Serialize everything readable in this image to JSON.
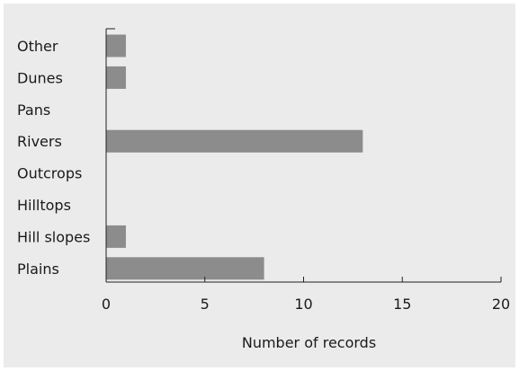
{
  "chart_data": {
    "type": "bar",
    "orientation": "horizontal",
    "title": "",
    "xlabel": "Number of records",
    "ylabel": "",
    "categories": [
      "Other",
      "Dunes",
      "Pans",
      "Rivers",
      "Outcrops",
      "Hilltops",
      "Hill slopes",
      "Plains"
    ],
    "values": [
      1,
      1,
      0,
      13,
      0,
      0,
      1,
      8
    ],
    "xlim": [
      0,
      20
    ],
    "xticks": [
      0,
      5,
      10,
      15,
      20
    ],
    "grid": false,
    "bar_color": "#8c8c8c",
    "background_color": "#ebebeb"
  }
}
